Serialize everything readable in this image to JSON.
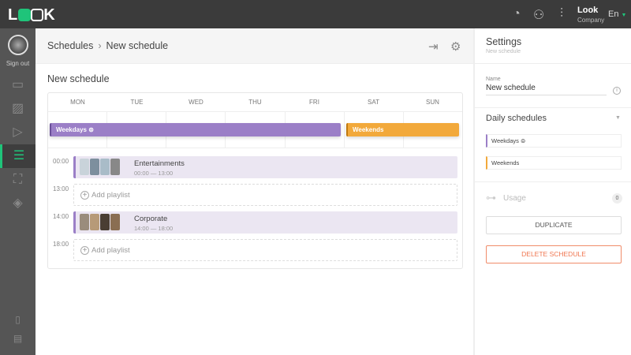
{
  "app": {
    "logo": "LOOK",
    "company_name": "Look",
    "company_label": "Company",
    "language": "En",
    "icons": [
      "analytics-icon",
      "users-icon",
      "settings-sliders-icon"
    ]
  },
  "sidebar": {
    "sign_out": "Sign out",
    "items": [
      "display-icon",
      "images-icon",
      "video-icon",
      "schedule-icon",
      "widgets-icon",
      "layers-icon"
    ],
    "bottom": [
      "book-icon",
      "chat-icon"
    ]
  },
  "header": {
    "breadcrumb": [
      "Schedules",
      "New schedule"
    ]
  },
  "main": {
    "title": "New schedule",
    "days": [
      "MON",
      "TUE",
      "WED",
      "THU",
      "FRI",
      "SAT",
      "SUN"
    ],
    "bars": [
      {
        "label": "Weekdays",
        "color": "#9b7fc7"
      },
      {
        "label": "Weekends",
        "color": "#f2a93b"
      }
    ],
    "slots": [
      {
        "time": "00:00",
        "type": "playlist",
        "name": "Entertainments",
        "range": "00:00 — 13:00"
      },
      {
        "time": "13:00",
        "type": "empty",
        "label": "Add playlist"
      },
      {
        "time": "14:00",
        "type": "playlist",
        "name": "Corporate",
        "range": "14:00 — 18:00"
      },
      {
        "time": "18:00",
        "type": "empty",
        "label": "Add playlist"
      }
    ]
  },
  "settings": {
    "title": "Settings",
    "subtitle": "New schedule",
    "name_label": "Name",
    "name_value": "New schedule",
    "daily_title": "Daily schedules",
    "daily": [
      "Weekdays",
      "Weekends"
    ],
    "usage_label": "Usage",
    "usage_count": "0",
    "duplicate": "DUPLICATE",
    "delete": "DELETE SCHEDULE"
  }
}
